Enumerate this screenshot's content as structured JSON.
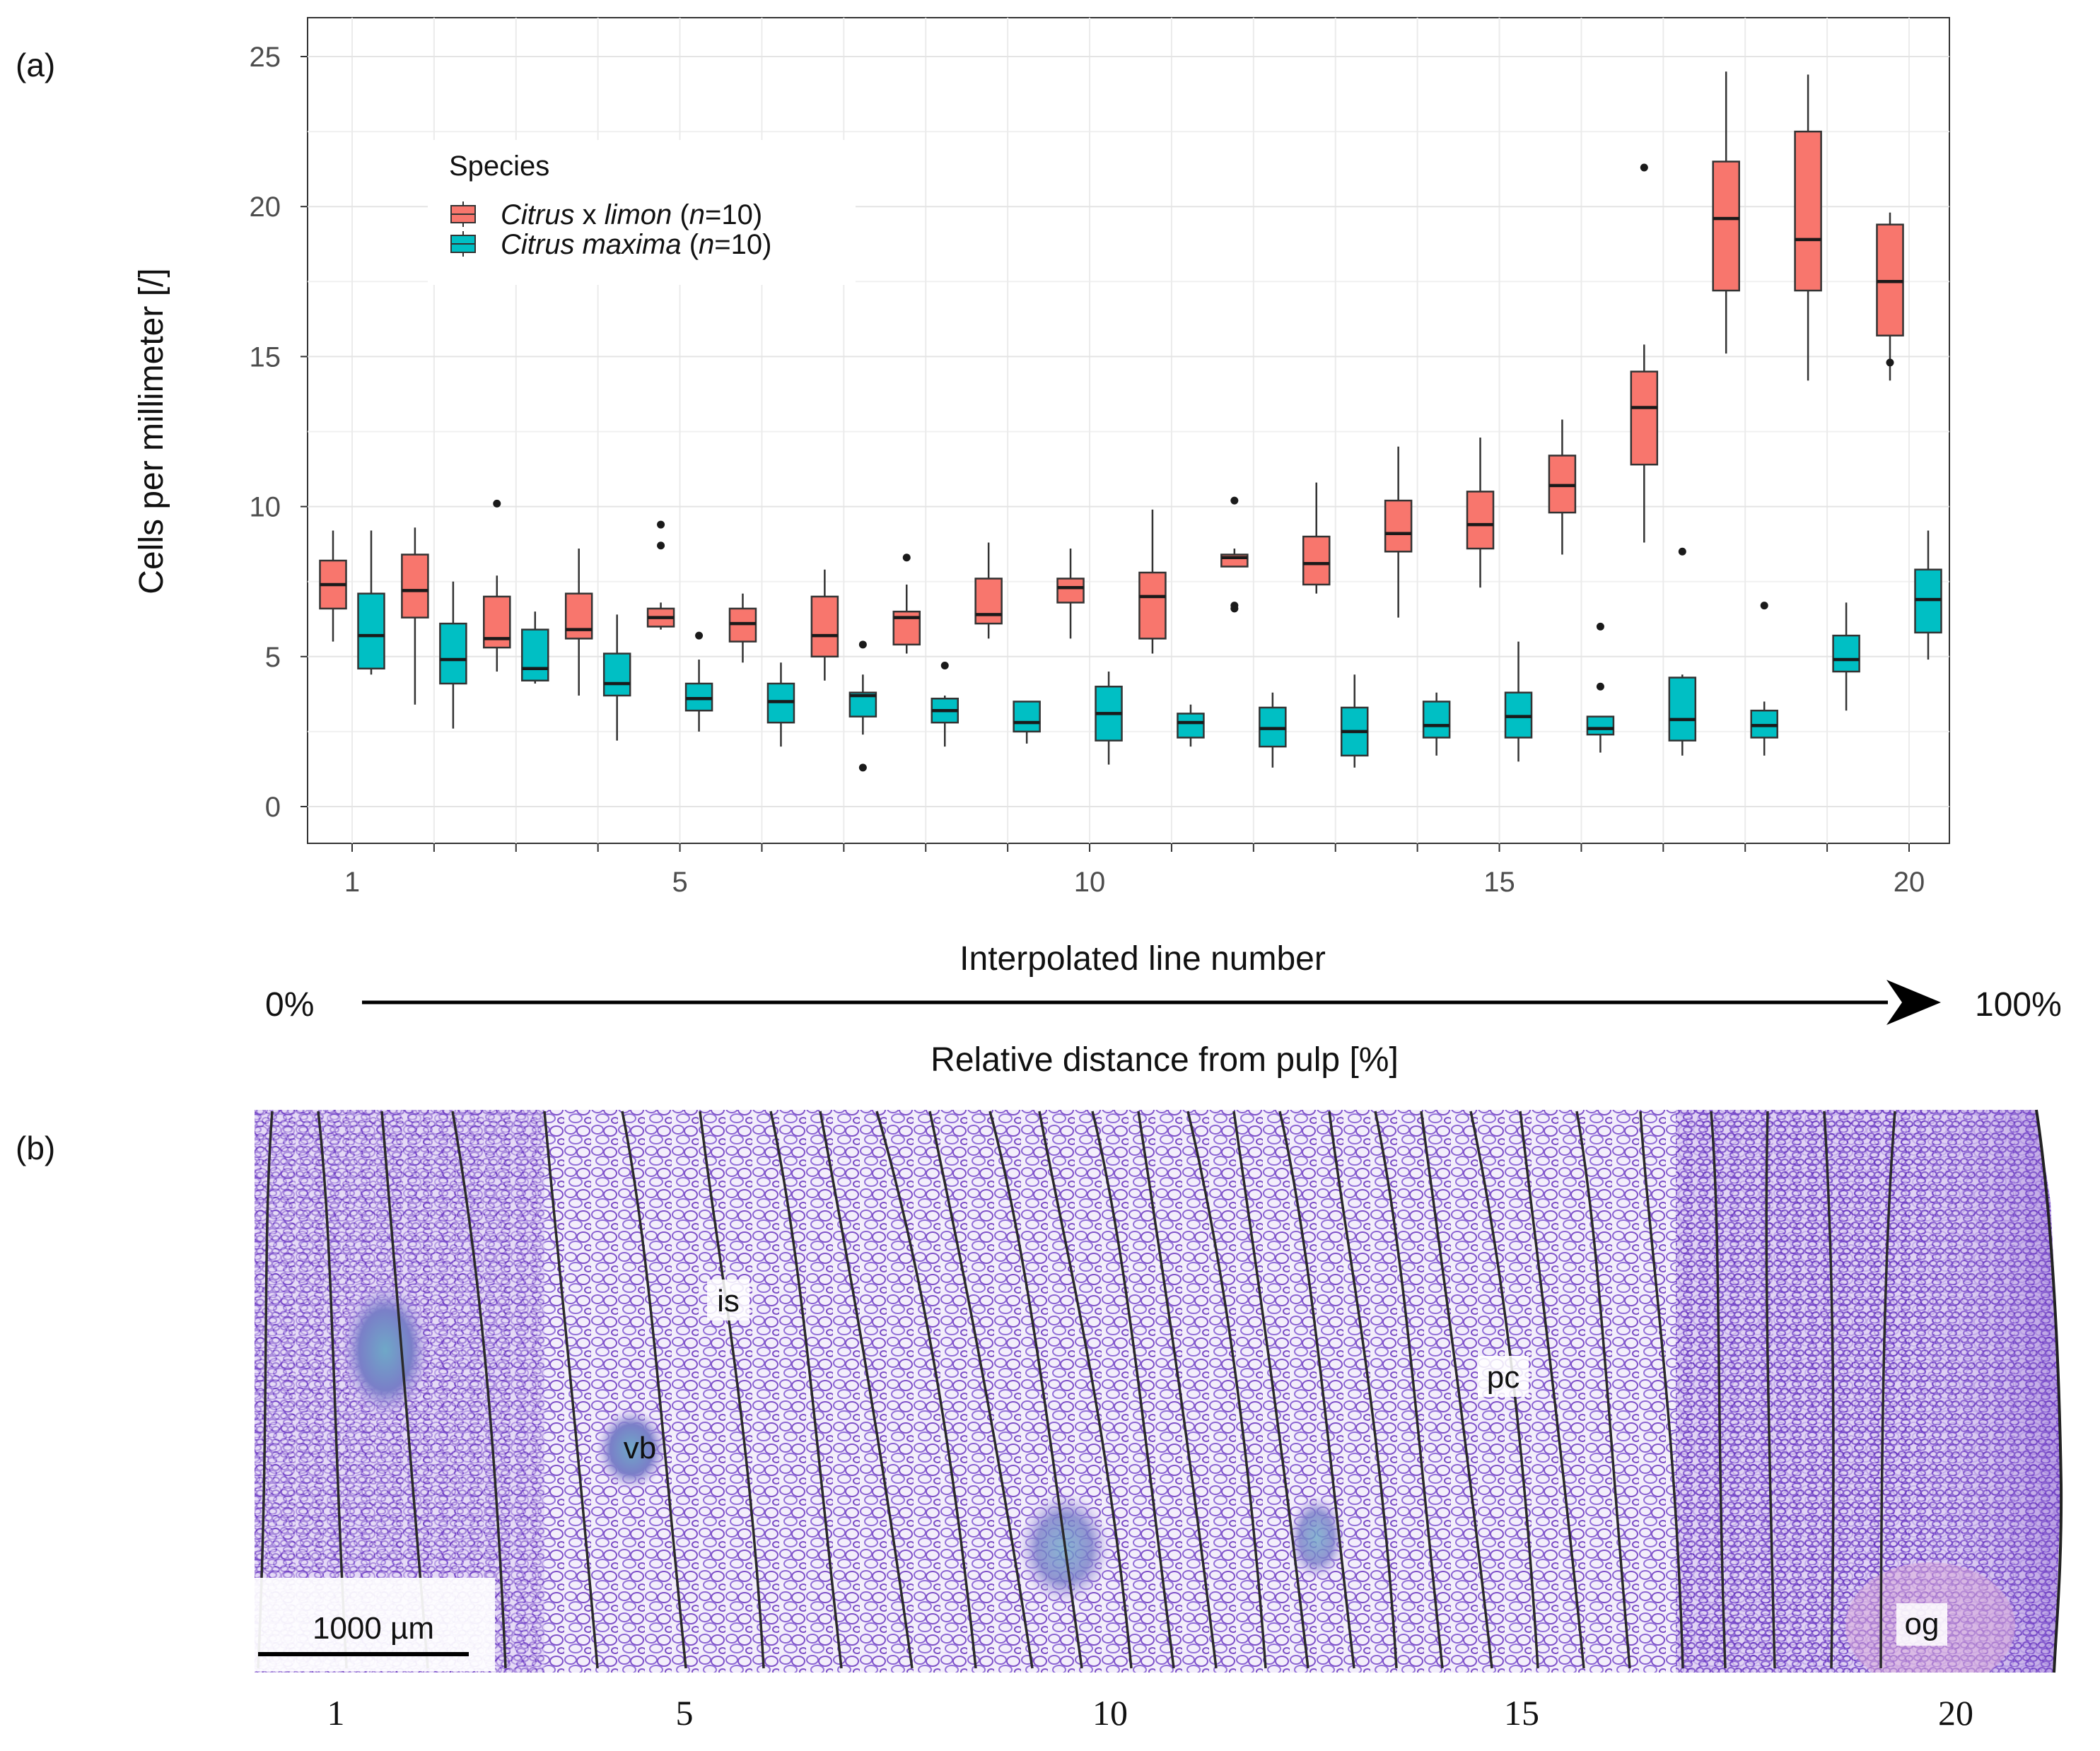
{
  "panel_a_label": "(a)",
  "panel_b_label": "(b)",
  "chart_data": {
    "type": "boxplot",
    "ylabel": "Cells per millimeter [/]",
    "xlabel": "Interpolated line number",
    "ylim": [
      0,
      25
    ],
    "yticks": [
      0,
      5,
      10,
      15,
      20,
      25
    ],
    "xticks": [
      1,
      5,
      10,
      15,
      20
    ],
    "x_range": [
      1,
      20
    ],
    "grid": true,
    "legend": {
      "title": "Species",
      "position": "top-left",
      "entries": [
        {
          "name_italic_1": "Citrus",
          "name_plain": " x ",
          "name_italic_2": "limon",
          "n_open": " (",
          "n_italic": "n",
          "n_rest": "=10)"
        },
        {
          "name_italic_1": "Citrus",
          "name_plain": " ",
          "name_italic_2": "maxima",
          "n_open": " (",
          "n_italic": "n",
          "n_rest": "=10)"
        }
      ]
    },
    "series": [
      {
        "name": "Citrus x limon (n=10)",
        "color": "#F8766D",
        "boxes": [
          {
            "x": 1,
            "min": 5.5,
            "q1": 6.6,
            "median": 7.4,
            "q3": 8.2,
            "max": 9.2,
            "outliers": []
          },
          {
            "x": 2,
            "min": 3.4,
            "q1": 6.3,
            "median": 7.2,
            "q3": 8.4,
            "max": 9.3,
            "outliers": []
          },
          {
            "x": 3,
            "min": 4.5,
            "q1": 5.3,
            "median": 5.6,
            "q3": 7.0,
            "max": 7.7,
            "outliers": [
              10.1
            ]
          },
          {
            "x": 4,
            "min": 3.7,
            "q1": 5.6,
            "median": 5.9,
            "q3": 7.1,
            "max": 8.6,
            "outliers": []
          },
          {
            "x": 5,
            "min": 5.9,
            "q1": 6.0,
            "median": 6.3,
            "q3": 6.6,
            "max": 6.8,
            "outliers": [
              9.4,
              8.7
            ]
          },
          {
            "x": 6,
            "min": 4.8,
            "q1": 5.5,
            "median": 6.1,
            "q3": 6.6,
            "max": 7.1,
            "outliers": []
          },
          {
            "x": 7,
            "min": 4.2,
            "q1": 5.0,
            "median": 5.7,
            "q3": 7.0,
            "max": 7.9,
            "outliers": []
          },
          {
            "x": 8,
            "min": 5.1,
            "q1": 5.4,
            "median": 6.3,
            "q3": 6.5,
            "max": 7.4,
            "outliers": [
              8.3
            ]
          },
          {
            "x": 9,
            "min": 5.6,
            "q1": 6.1,
            "median": 6.4,
            "q3": 7.6,
            "max": 8.8,
            "outliers": []
          },
          {
            "x": 10,
            "min": 5.6,
            "q1": 6.8,
            "median": 7.3,
            "q3": 7.6,
            "max": 8.6,
            "outliers": []
          },
          {
            "x": 11,
            "min": 5.1,
            "q1": 5.6,
            "median": 7.0,
            "q3": 7.8,
            "max": 9.9,
            "outliers": []
          },
          {
            "x": 12,
            "min": 8.0,
            "q1": 8.0,
            "median": 8.3,
            "q3": 8.4,
            "max": 8.6,
            "outliers": [
              10.2,
              6.7,
              6.6
            ]
          },
          {
            "x": 13,
            "min": 7.1,
            "q1": 7.4,
            "median": 8.1,
            "q3": 9.0,
            "max": 10.8,
            "outliers": []
          },
          {
            "x": 14,
            "min": 6.3,
            "q1": 8.5,
            "median": 9.1,
            "q3": 10.2,
            "max": 12.0,
            "outliers": []
          },
          {
            "x": 15,
            "min": 7.3,
            "q1": 8.6,
            "median": 9.4,
            "q3": 10.5,
            "max": 12.3,
            "outliers": []
          },
          {
            "x": 16,
            "min": 8.4,
            "q1": 9.8,
            "median": 10.7,
            "q3": 11.7,
            "max": 12.9,
            "outliers": []
          },
          {
            "x": 17,
            "min": 8.8,
            "q1": 11.4,
            "median": 13.3,
            "q3": 14.5,
            "max": 15.4,
            "outliers": [
              21.3
            ]
          },
          {
            "x": 18,
            "min": 15.1,
            "q1": 17.2,
            "median": 19.6,
            "q3": 21.5,
            "max": 24.5,
            "outliers": []
          },
          {
            "x": 19,
            "min": 14.2,
            "q1": 17.2,
            "median": 18.9,
            "q3": 22.5,
            "max": 24.4,
            "outliers": []
          },
          {
            "x": 20,
            "min": 14.2,
            "q1": 15.7,
            "median": 17.5,
            "q3": 19.4,
            "max": 19.8,
            "outliers": [
              14.8
            ]
          }
        ]
      },
      {
        "name": "Citrus maxima (n=10)",
        "color": "#00BFC4",
        "boxes": [
          {
            "x": 1,
            "min": 4.4,
            "q1": 4.6,
            "median": 5.7,
            "q3": 7.1,
            "max": 9.2,
            "outliers": []
          },
          {
            "x": 2,
            "min": 2.6,
            "q1": 4.1,
            "median": 4.9,
            "q3": 6.1,
            "max": 7.5,
            "outliers": []
          },
          {
            "x": 3,
            "min": 4.1,
            "q1": 4.2,
            "median": 4.6,
            "q3": 5.9,
            "max": 6.5,
            "outliers": []
          },
          {
            "x": 4,
            "min": 2.2,
            "q1": 3.7,
            "median": 4.1,
            "q3": 5.1,
            "max": 6.4,
            "outliers": []
          },
          {
            "x": 5,
            "min": 2.5,
            "q1": 3.2,
            "median": 3.6,
            "q3": 4.1,
            "max": 4.9,
            "outliers": [
              5.7
            ]
          },
          {
            "x": 6,
            "min": 2.0,
            "q1": 2.8,
            "median": 3.5,
            "q3": 4.1,
            "max": 4.8,
            "outliers": []
          },
          {
            "x": 7,
            "min": 2.4,
            "q1": 3.0,
            "median": 3.7,
            "q3": 3.8,
            "max": 4.4,
            "outliers": [
              5.4,
              1.3
            ]
          },
          {
            "x": 8,
            "min": 2.0,
            "q1": 2.8,
            "median": 3.2,
            "q3": 3.6,
            "max": 3.7,
            "outliers": [
              4.7
            ]
          },
          {
            "x": 9,
            "min": 2.1,
            "q1": 2.5,
            "median": 2.8,
            "q3": 3.5,
            "max": 3.5,
            "outliers": []
          },
          {
            "x": 10,
            "min": 1.4,
            "q1": 2.2,
            "median": 3.1,
            "q3": 4.0,
            "max": 4.5,
            "outliers": []
          },
          {
            "x": 11,
            "min": 2.0,
            "q1": 2.3,
            "median": 2.8,
            "q3": 3.1,
            "max": 3.4,
            "outliers": []
          },
          {
            "x": 12,
            "min": 1.3,
            "q1": 2.0,
            "median": 2.6,
            "q3": 3.3,
            "max": 3.8,
            "outliers": []
          },
          {
            "x": 13,
            "min": 1.3,
            "q1": 1.7,
            "median": 2.5,
            "q3": 3.3,
            "max": 4.4,
            "outliers": []
          },
          {
            "x": 14,
            "min": 1.7,
            "q1": 2.3,
            "median": 2.7,
            "q3": 3.5,
            "max": 3.8,
            "outliers": []
          },
          {
            "x": 15,
            "min": 1.5,
            "q1": 2.3,
            "median": 3.0,
            "q3": 3.8,
            "max": 5.5,
            "outliers": []
          },
          {
            "x": 16,
            "min": 1.8,
            "q1": 2.4,
            "median": 2.6,
            "q3": 3.0,
            "max": 3.0,
            "outliers": [
              6.0,
              4.0
            ]
          },
          {
            "x": 17,
            "min": 1.7,
            "q1": 2.2,
            "median": 2.9,
            "q3": 4.3,
            "max": 4.4,
            "outliers": [
              8.5
            ]
          },
          {
            "x": 18,
            "min": 1.7,
            "q1": 2.3,
            "median": 2.7,
            "q3": 3.2,
            "max": 3.5,
            "outliers": [
              6.7
            ]
          },
          {
            "x": 19,
            "min": 3.2,
            "q1": 4.5,
            "median": 4.9,
            "q3": 5.7,
            "max": 6.8,
            "outliers": []
          },
          {
            "x": 20,
            "min": 4.9,
            "q1": 5.8,
            "median": 6.9,
            "q3": 7.9,
            "max": 9.2,
            "outliers": []
          }
        ]
      }
    ]
  },
  "arrow": {
    "start_label": "0%",
    "end_label": "100%",
    "caption": "Relative distance from pulp [%]"
  },
  "micrograph": {
    "labels": [
      "is",
      "vb",
      "pc",
      "og"
    ],
    "scalebar_label": "1000 µm",
    "bottom_numbers": [
      "1",
      "5",
      "10",
      "15",
      "20"
    ]
  }
}
